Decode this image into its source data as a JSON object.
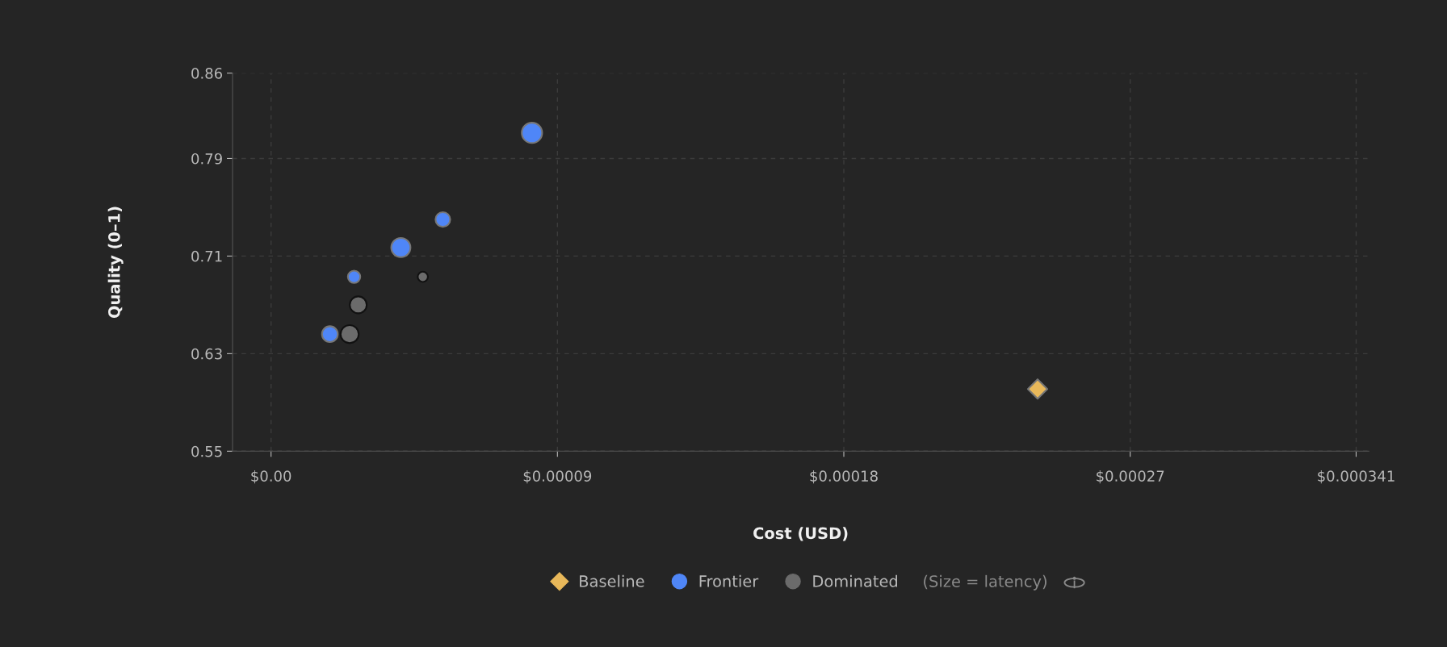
{
  "chart_data": {
    "type": "bubble",
    "xlabel": "Cost (USD)",
    "ylabel": "Quality (0–1)",
    "xlim": [
      -1.21e-05,
      0.000345
    ],
    "xticks": [
      {
        "value": 0,
        "label": "$0.00"
      },
      {
        "value": 9e-05,
        "label": "$0.00009"
      },
      {
        "value": 0.00018,
        "label": "$0.00018"
      },
      {
        "value": 0.00027,
        "label": "$0.00027"
      },
      {
        "value": 0.000341,
        "label": "$0.000341"
      }
    ],
    "ylim": [
      0.55,
      0.86
    ],
    "yticks": [
      0.55,
      0.63,
      0.71,
      0.79,
      0.86
    ],
    "grid": true,
    "legend": "bottom",
    "annotations": [
      "(Size = latency)"
    ],
    "series": [
      {
        "name": "Baseline",
        "type": "scatter",
        "marker": "diamond",
        "color": "#e8b85a",
        "x": [
          0.0002409
        ],
        "values": [
          0.601
        ]
      },
      {
        "name": "Frontier",
        "color": "#4f86f7",
        "marker": "circle",
        "x": [
          1.85e-05,
          2.61e-05,
          4.08e-05,
          5.4e-05,
          8.2e-05
        ],
        "values": [
          0.646,
          0.693,
          0.717,
          0.74,
          0.811
        ],
        "sizes": [
          0.6,
          0.37,
          0.89,
          0.52,
          1
        ]
      },
      {
        "name": "Dominated",
        "color": "#6b6b6b",
        "marker": "circle",
        "x": [
          2.47e-05,
          2.74e-05,
          4.77e-05
        ],
        "values": [
          0.646,
          0.67,
          0.693
        ],
        "sizes": [
          0.79,
          0.69,
          0.25
        ]
      }
    ]
  }
}
